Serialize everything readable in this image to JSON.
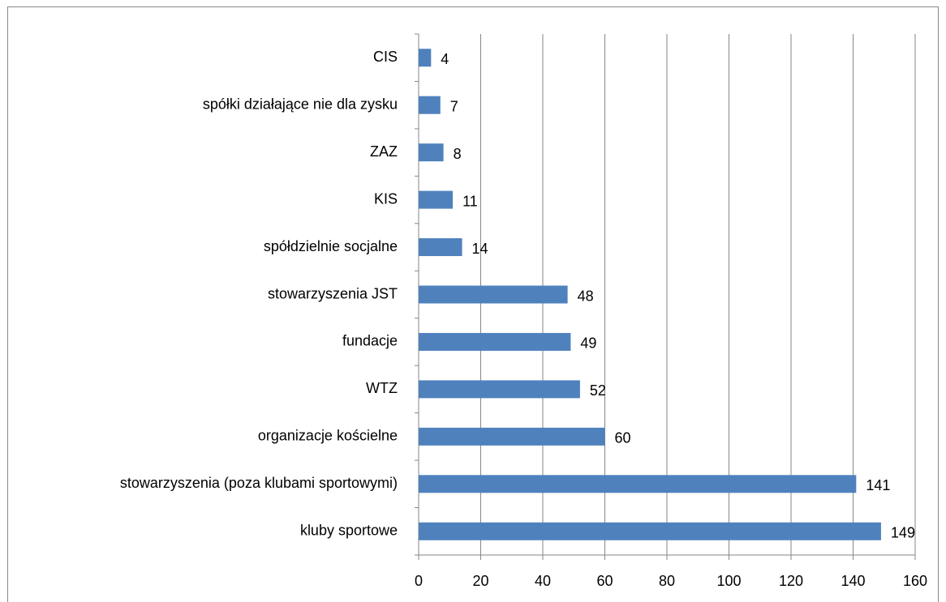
{
  "chart_data": {
    "type": "bar",
    "orientation": "horizontal",
    "categories": [
      "CIS",
      "spółki działające nie dla zysku",
      "ZAZ",
      "KIS",
      "spółdzielnie socjalne",
      "stowarzyszenia JST",
      "fundacje",
      "WTZ",
      "organizacje kościelne",
      "stowarzyszenia (poza klubami sportowymi)",
      "kluby sportowe"
    ],
    "values": [
      4,
      7,
      8,
      11,
      14,
      48,
      49,
      52,
      60,
      141,
      149
    ],
    "color": "#4f81bd",
    "xlim": [
      0,
      160
    ],
    "xticks": [
      0,
      20,
      40,
      60,
      80,
      100,
      120,
      140,
      160
    ],
    "grid": true
  }
}
